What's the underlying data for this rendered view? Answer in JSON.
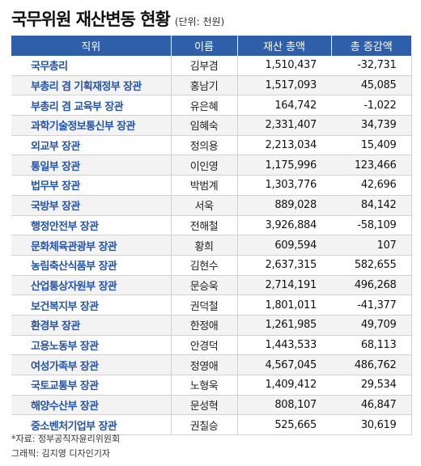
{
  "title": "국무위원 재산변동 현황",
  "unit": "(단위: 천원)",
  "columns": [
    "직위",
    "이름",
    "재산 총액",
    "총 증감액"
  ],
  "rows": [
    {
      "position": "국무총리",
      "name": "김부겸",
      "total": "1,510,437",
      "change": "-32,731"
    },
    {
      "position": "부총리 겸 기획재정부 장관",
      "name": "홍남기",
      "total": "1,517,093",
      "change": "45,085"
    },
    {
      "position": "부총리 겸 교육부 장관",
      "name": "유은혜",
      "total": "164,742",
      "change": "-1,022"
    },
    {
      "position": "과학기술정보통신부 장관",
      "name": "임혜숙",
      "total": "2,331,407",
      "change": "34,739"
    },
    {
      "position": "외교부 장관",
      "name": "정의용",
      "total": "2,213,034",
      "change": "15,409"
    },
    {
      "position": "통일부 장관",
      "name": "이인영",
      "total": "1,175,996",
      "change": "123,466"
    },
    {
      "position": "법무부 장관",
      "name": "박범계",
      "total": "1,303,776",
      "change": "42,696"
    },
    {
      "position": "국방부 장관",
      "name": "서욱",
      "total": "889,028",
      "change": "84,142"
    },
    {
      "position": "행정안전부 장관",
      "name": "전해철",
      "total": "3,926,884",
      "change": "-58,109"
    },
    {
      "position": "문화체육관광부 장관",
      "name": "황희",
      "total": "609,594",
      "change": "107"
    },
    {
      "position": "농림축산식품부 장관",
      "name": "김현수",
      "total": "2,637,315",
      "change": "582,655"
    },
    {
      "position": "산업통상자원부 장관",
      "name": "문승욱",
      "total": "2,714,191",
      "change": "496,268"
    },
    {
      "position": "보건복지부 장관",
      "name": "권덕철",
      "total": "1,801,011",
      "change": "-41,377"
    },
    {
      "position": "환경부 장관",
      "name": "한정애",
      "total": "1,261,985",
      "change": "49,709"
    },
    {
      "position": "고용노동부 장관",
      "name": "안경덕",
      "total": "1,443,533",
      "change": "68,113"
    },
    {
      "position": "여성가족부 장관",
      "name": "정영애",
      "total": "4,567,045",
      "change": "486,762"
    },
    {
      "position": "국토교통부 장관",
      "name": "노형욱",
      "total": "1,409,412",
      "change": "29,534"
    },
    {
      "position": "해양수산부 장관",
      "name": "문성혁",
      "total": "808,107",
      "change": "46,847"
    },
    {
      "position": "중소벤처기업부 장관",
      "name": "권칠승",
      "total": "525,665",
      "change": "30,619"
    }
  ],
  "source": "*자료: 정부공직자윤리위원회",
  "credit": "그래픽: 김지영 디자인기자",
  "colors": {
    "header_bg": "#2f5fa8",
    "position_text": "#2554a8",
    "alt_row": "#f3f3f3"
  }
}
